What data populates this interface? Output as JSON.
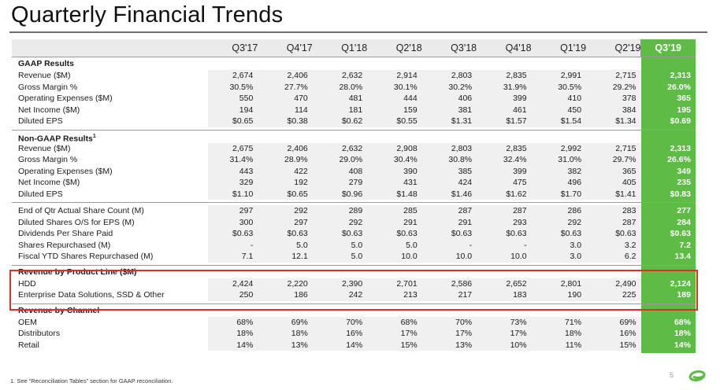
{
  "title": "Quarterly Financial Trends",
  "columns": [
    "Q3'17",
    "Q4'17",
    "Q1'18",
    "Q2'18",
    "Q3'18",
    "Q4'18",
    "Q1'19",
    "Q2'19",
    "Q3'19"
  ],
  "gaap": {
    "heading": "GAAP Results",
    "rows": [
      {
        "label": "Revenue ($M)",
        "values": [
          "2,674",
          "2,406",
          "2,632",
          "2,914",
          "2,803",
          "2,835",
          "2,991",
          "2,715",
          "2,313"
        ]
      },
      {
        "label": "Gross Margin %",
        "values": [
          "30.5%",
          "27.7%",
          "28.0%",
          "30.1%",
          "30.2%",
          "31.9%",
          "30.5%",
          "29.2%",
          "26.0%"
        ]
      },
      {
        "label": "Operating Expenses ($M)",
        "values": [
          "550",
          "470",
          "481",
          "444",
          "406",
          "399",
          "410",
          "378",
          "365"
        ]
      },
      {
        "label": "Net Income ($M)",
        "values": [
          "194",
          "114",
          "181",
          "159",
          "381",
          "461",
          "450",
          "384",
          "195"
        ]
      },
      {
        "label": "Diluted EPS",
        "values": [
          "$0.65",
          "$0.38",
          "$0.62",
          "$0.55",
          "$1.31",
          "$1.57",
          "$1.54",
          "$1.34",
          "$0.69"
        ]
      }
    ]
  },
  "nongaap": {
    "heading": "Non-GAAP Results",
    "heading_sup": "1",
    "rows": [
      {
        "label": "Revenue ($M)",
        "values": [
          "2,675",
          "2,406",
          "2,632",
          "2,908",
          "2,803",
          "2,835",
          "2,992",
          "2,715",
          "2,313"
        ]
      },
      {
        "label": "Gross Margin %",
        "values": [
          "31.4%",
          "28.9%",
          "29.0%",
          "30.4%",
          "30.8%",
          "32.4%",
          "31.0%",
          "29.7%",
          "26.6%"
        ]
      },
      {
        "label": "Operating Expenses ($M)",
        "values": [
          "443",
          "422",
          "408",
          "390",
          "385",
          "399",
          "382",
          "365",
          "349"
        ]
      },
      {
        "label": "Net Income ($M)",
        "values": [
          "329",
          "192",
          "279",
          "431",
          "424",
          "475",
          "496",
          "405",
          "235"
        ]
      },
      {
        "label": "Diluted EPS",
        "values": [
          "$1.10",
          "$0.65",
          "$0.96",
          "$1.48",
          "$1.46",
          "$1.62",
          "$1.70",
          "$1.41",
          "$0.83"
        ]
      }
    ]
  },
  "shares": {
    "rows": [
      {
        "label": "End of Qtr Actual Share Count (M)",
        "values": [
          "297",
          "292",
          "289",
          "285",
          "287",
          "287",
          "286",
          "283",
          "277"
        ]
      },
      {
        "label": "Diluted Shares O/S for EPS (M)",
        "values": [
          "300",
          "297",
          "292",
          "291",
          "291",
          "293",
          "292",
          "287",
          "284"
        ]
      },
      {
        "label": "Dividends Per Share Paid",
        "values": [
          "$0.63",
          "$0.63",
          "$0.63",
          "$0.63",
          "$0.63",
          "$0.63",
          "$0.63",
          "$0.63",
          "$0.63"
        ]
      },
      {
        "label": "Shares Repurchased (M)",
        "values": [
          "-",
          "5.0",
          "5.0",
          "5.0",
          "-",
          "-",
          "3.0",
          "3.2",
          "7.2"
        ]
      },
      {
        "label": "Fiscal YTD Shares Repurchased (M)",
        "values": [
          "7.1",
          "12.1",
          "5.0",
          "10.0",
          "10.0",
          "10.0",
          "3.0",
          "6.2",
          "13.4"
        ]
      }
    ]
  },
  "product": {
    "heading": "Revenue by Product Line ($M)",
    "rows": [
      {
        "label": "HDD",
        "values": [
          "2,424",
          "2,220",
          "2,390",
          "2,701",
          "2,586",
          "2,652",
          "2,801",
          "2,490",
          "2,124"
        ]
      },
      {
        "label": "Enterprise Data Solutions, SSD & Other",
        "values": [
          "250",
          "186",
          "242",
          "213",
          "217",
          "183",
          "190",
          "225",
          "189"
        ]
      }
    ]
  },
  "channel": {
    "heading": "Revenue by Channel",
    "rows": [
      {
        "label": "OEM",
        "values": [
          "68%",
          "69%",
          "70%",
          "68%",
          "70%",
          "73%",
          "71%",
          "69%",
          "68%"
        ]
      },
      {
        "label": "Distributors",
        "values": [
          "18%",
          "18%",
          "16%",
          "17%",
          "17%",
          "17%",
          "18%",
          "16%",
          "18%"
        ]
      },
      {
        "label": "Retail",
        "values": [
          "14%",
          "13%",
          "14%",
          "15%",
          "13%",
          "10%",
          "11%",
          "15%",
          "14%"
        ]
      }
    ]
  },
  "footnote": "1.  See “Reconciliation Tables” section for GAAP reconciliation.",
  "page_number": "5",
  "colors": {
    "accent_green": "#5dbb46",
    "highlight_red": "#d9302b",
    "cell_gray": "#f0f0f0"
  },
  "logo_icon": "seagate-spiral-logo-icon"
}
